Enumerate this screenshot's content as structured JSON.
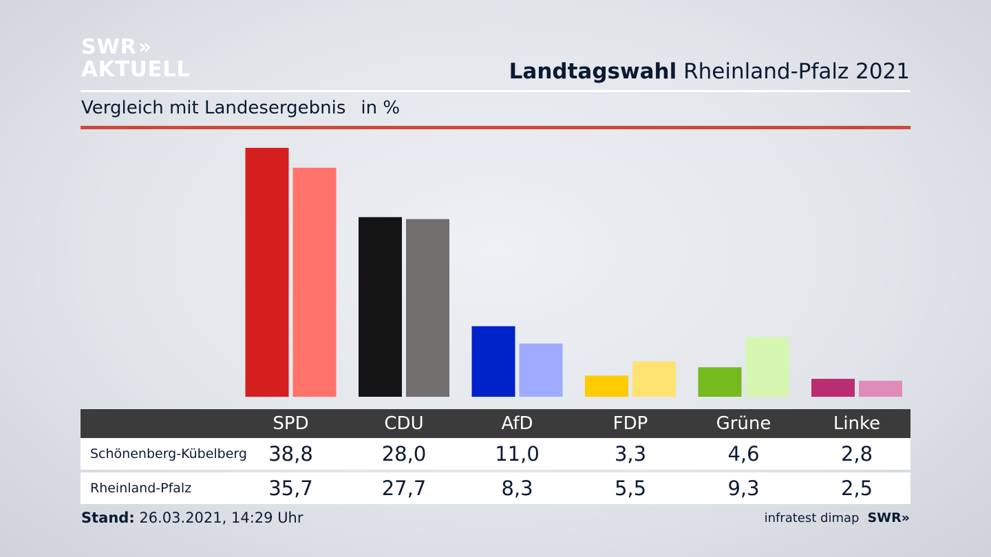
{
  "brand": {
    "line1": "SWR",
    "chevrons": "»",
    "line2": "AKTUELL"
  },
  "header": {
    "title_bold": "Landtagswahl",
    "title_rest": "Rheinland-Pfalz 2021"
  },
  "subtitle": {
    "text": "Vergleich mit Landesergebnis",
    "unit": "in %"
  },
  "chart_data": {
    "type": "bar",
    "categories": [
      "SPD",
      "CDU",
      "AfD",
      "FDP",
      "Grüne",
      "Linke"
    ],
    "series": [
      {
        "name": "Schönenberg-Kübelberg",
        "values": [
          38.8,
          28.0,
          11.0,
          3.3,
          4.6,
          2.8
        ],
        "labels": [
          "38,8",
          "28,0",
          "11,0",
          "3,3",
          "4,6",
          "2,8"
        ]
      },
      {
        "name": "Rheinland-Pfalz",
        "values": [
          35.7,
          27.7,
          8.3,
          5.5,
          9.3,
          2.5
        ],
        "labels": [
          "35,7",
          "27,7",
          "8,3",
          "5,5",
          "9,3",
          "2,5"
        ]
      }
    ],
    "colors": {
      "primary": [
        "#d61f1f",
        "#141414",
        "#0022c9",
        "#ffcc00",
        "#76bb1d",
        "#bb2d72"
      ],
      "secondary": [
        "#ff736b",
        "#706f6e",
        "#9fabff",
        "#ffe371",
        "#d6f7b1",
        "#e08cba"
      ]
    },
    "ylim": [
      0,
      40
    ]
  },
  "footer": {
    "stand_label": "Stand:",
    "stand_value": "26.03.2021, 14:29 Uhr",
    "source": "infratest dimap",
    "source_brand": "SWR»"
  }
}
